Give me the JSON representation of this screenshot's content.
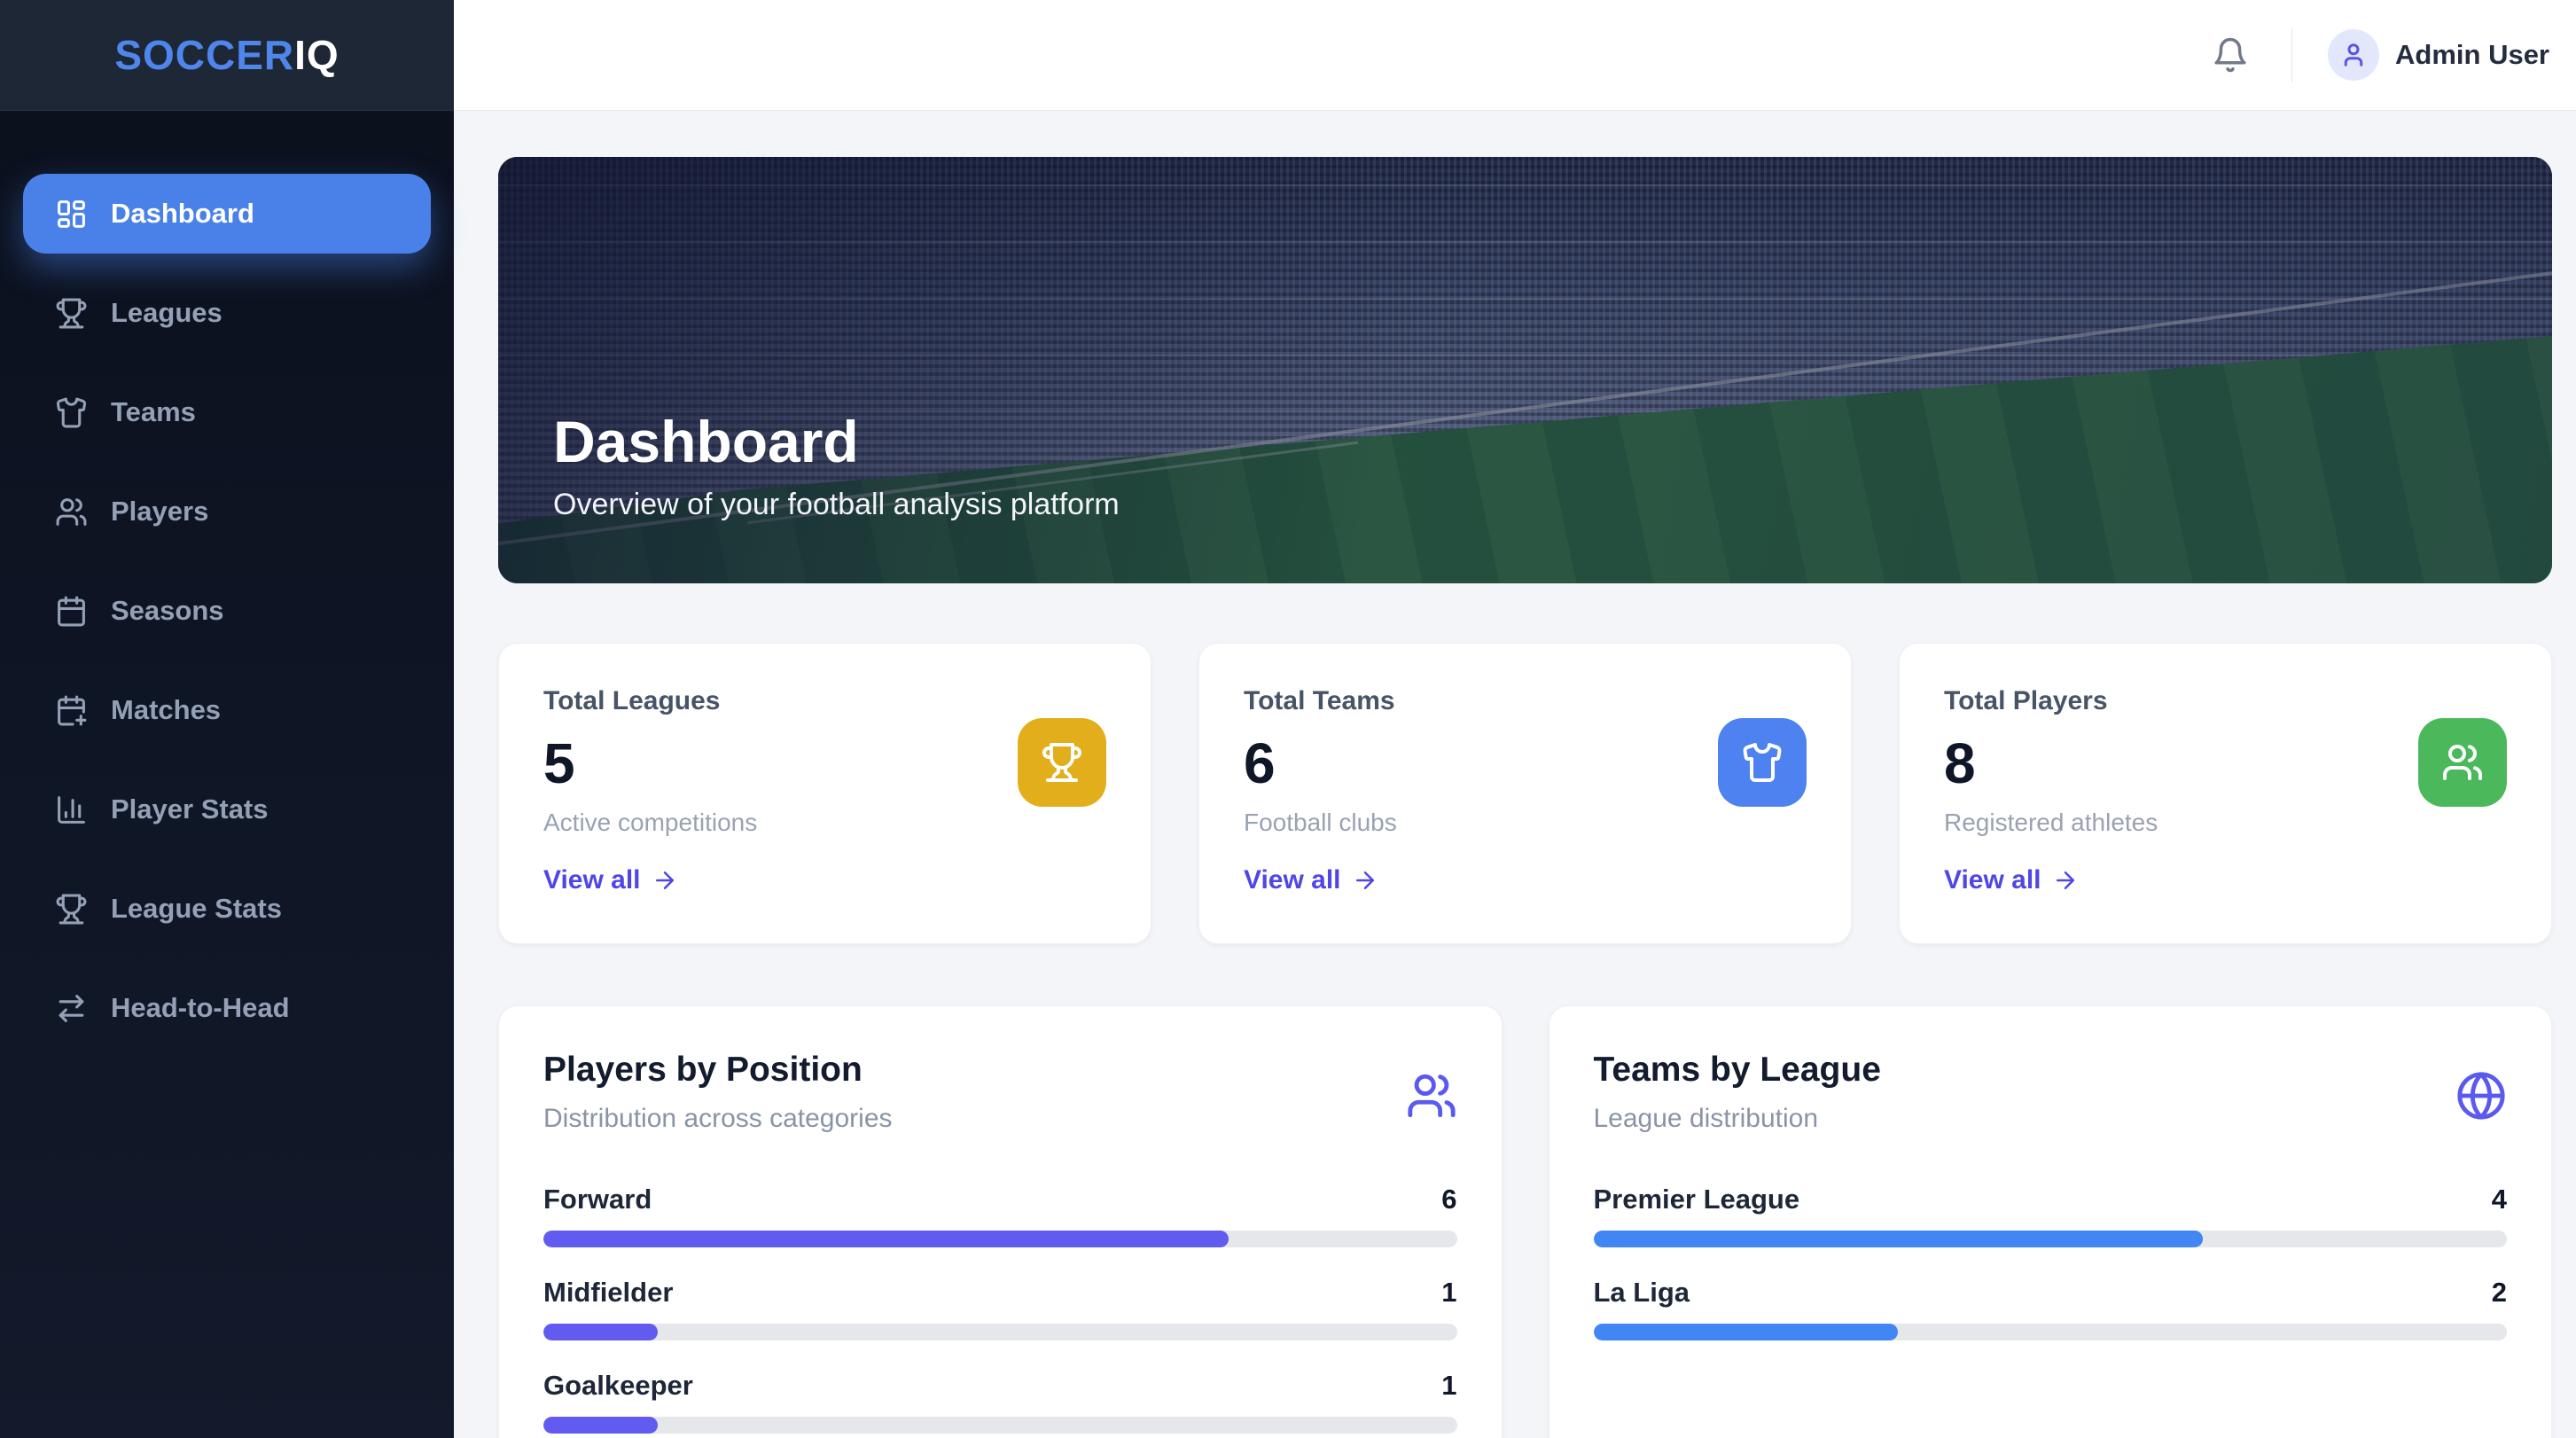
{
  "brand": {
    "primary": "SOCCER",
    "secondary": "IQ"
  },
  "topbar": {
    "user_name": "Admin User"
  },
  "sidebar": {
    "items": [
      {
        "label": "Dashboard",
        "icon": "dashboard-grid-icon",
        "active": true
      },
      {
        "label": "Leagues",
        "icon": "trophy-icon",
        "active": false
      },
      {
        "label": "Teams",
        "icon": "shirt-icon",
        "active": false
      },
      {
        "label": "Players",
        "icon": "users-icon",
        "active": false
      },
      {
        "label": "Seasons",
        "icon": "calendar-icon",
        "active": false
      },
      {
        "label": "Matches",
        "icon": "calendar-plus-icon",
        "active": false
      },
      {
        "label": "Player Stats",
        "icon": "bar-chart-icon",
        "active": false
      },
      {
        "label": "League Stats",
        "icon": "trophy-icon",
        "active": false
      },
      {
        "label": "Head-to-Head",
        "icon": "swap-arrows-icon",
        "active": false
      }
    ]
  },
  "hero": {
    "title": "Dashboard",
    "subtitle": "Overview of your football analysis platform"
  },
  "stat_cards": [
    {
      "label": "Total Leagues",
      "value": "5",
      "sublabel": "Active competitions",
      "link": "View all",
      "icon": "trophy-icon",
      "icon_bg": "#E2AE1B"
    },
    {
      "label": "Total Teams",
      "value": "6",
      "sublabel": "Football clubs",
      "link": "View all",
      "icon": "shirt-icon",
      "icon_bg": "#4D82F0"
    },
    {
      "label": "Total Players",
      "value": "8",
      "sublabel": "Registered athletes",
      "link": "View all",
      "icon": "users-icon",
      "icon_bg": "#4BB85C"
    }
  ],
  "panels": [
    {
      "title": "Players by Position",
      "subtitle": "Distribution across categories",
      "icon": "users-icon",
      "bar_color": "#615BF0",
      "items": [
        {
          "label": "Forward",
          "value": "6",
          "pct": 75
        },
        {
          "label": "Midfielder",
          "value": "1",
          "pct": 12.5
        },
        {
          "label": "Goalkeeper",
          "value": "1",
          "pct": 12.5
        }
      ]
    },
    {
      "title": "Teams by League",
      "subtitle": "League distribution",
      "icon": "globe-icon",
      "bar_color": "#4285F4",
      "items": [
        {
          "label": "Premier League",
          "value": "4",
          "pct": 66.7
        },
        {
          "label": "La Liga",
          "value": "2",
          "pct": 33.3
        }
      ]
    }
  ],
  "chart_data": [
    {
      "type": "bar",
      "title": "Players by Position",
      "categories": [
        "Forward",
        "Midfielder",
        "Goalkeeper"
      ],
      "values": [
        6,
        1,
        1
      ]
    },
    {
      "type": "bar",
      "title": "Teams by League",
      "categories": [
        "Premier League",
        "La Liga"
      ],
      "values": [
        4,
        2
      ]
    }
  ],
  "colors": {
    "sidebar_active": "#4A81E9",
    "brand_blue": "#4E86EC",
    "link_indigo": "#4F46E5",
    "bar_purple": "#615BF0",
    "bar_blue": "#4285F4",
    "tile_yellow": "#E2AE1B",
    "tile_blue": "#4D82F0",
    "tile_green": "#4BB85C"
  }
}
